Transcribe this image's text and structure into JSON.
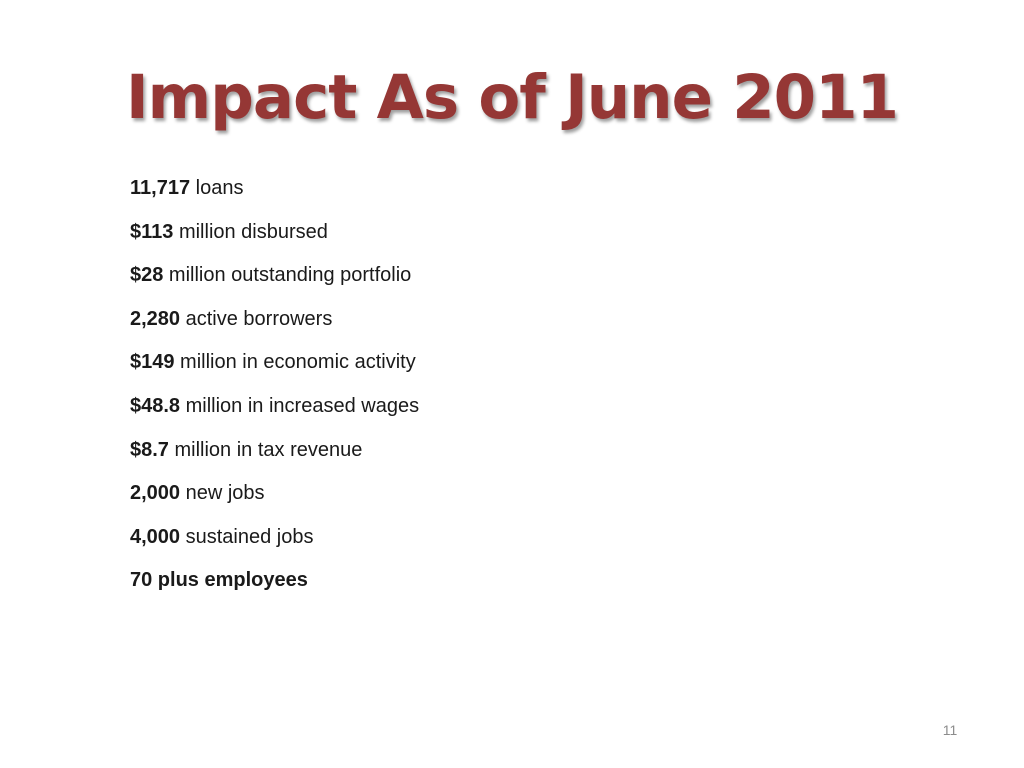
{
  "slide": {
    "title": "Impact As of June 2011",
    "page_number": "11",
    "accent_color": "#953735",
    "stats": [
      {
        "value": "11,717",
        "label": " loans"
      },
      {
        "value": "$113",
        "label": " million disbursed"
      },
      {
        "value": "$28",
        "label": " million outstanding portfolio"
      },
      {
        "value": "2,280",
        "label": " active borrowers"
      },
      {
        "value": "$149",
        "label": " million in economic activity"
      },
      {
        "value": "$48.8",
        "label": " million in increased wages"
      },
      {
        "value": "$8.7",
        "label": " million in tax revenue"
      },
      {
        "value": "2,000",
        "label": " new jobs"
      },
      {
        "value": "4,000",
        "label": " sustained jobs"
      },
      {
        "value": "70 plus employees",
        "label": ""
      }
    ]
  }
}
